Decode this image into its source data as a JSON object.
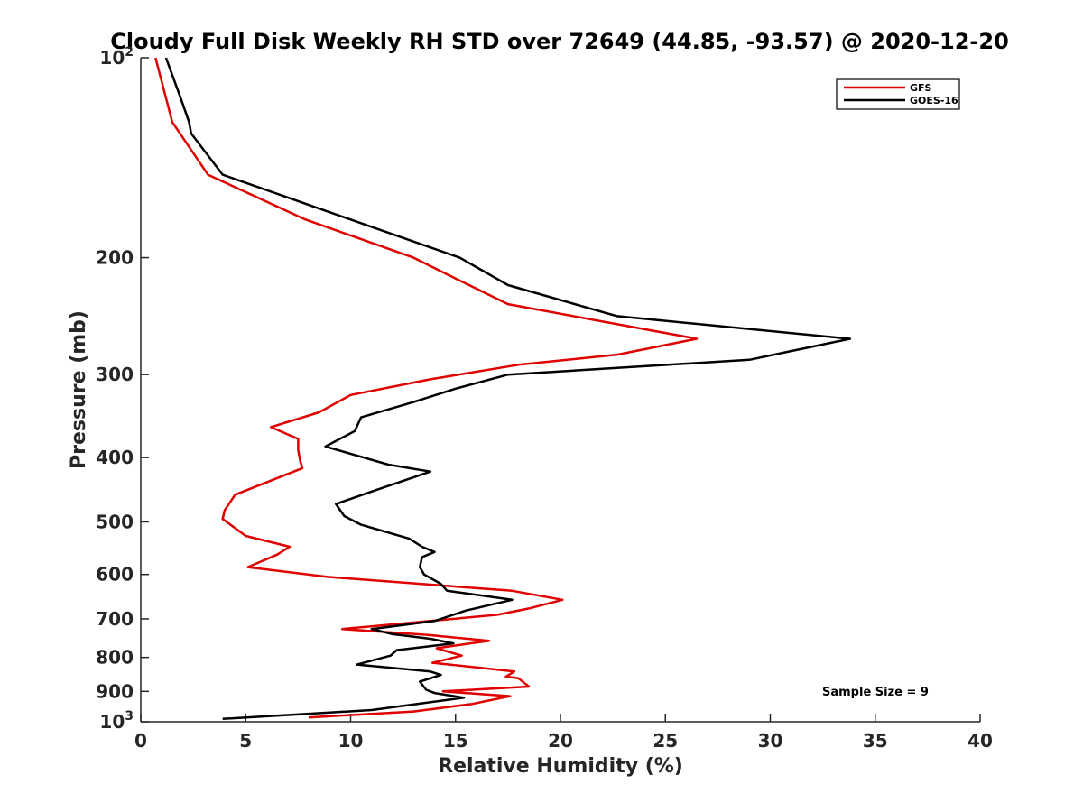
{
  "chart_data": {
    "type": "line",
    "title": "Cloudy Full Disk Weekly RH STD over 72649 (44.85, -93.57) @ 2020-12-20",
    "xlabel": "Relative Humidity (%)",
    "ylabel": "Pressure (mb)",
    "xlim": [
      0,
      40
    ],
    "ylim": [
      100,
      1000
    ],
    "y_scale": "log",
    "y_reversed": true,
    "x_ticks": [
      0,
      5,
      10,
      15,
      20,
      25,
      30,
      35,
      40
    ],
    "y_ticks": [
      {
        "value": 100,
        "label": "10",
        "sup": "2"
      },
      {
        "value": 200,
        "label": "200",
        "sup": ""
      },
      {
        "value": 300,
        "label": "300",
        "sup": ""
      },
      {
        "value": 400,
        "label": "400",
        "sup": ""
      },
      {
        "value": 500,
        "label": "500",
        "sup": ""
      },
      {
        "value": 600,
        "label": "600",
        "sup": ""
      },
      {
        "value": 700,
        "label": "700",
        "sup": ""
      },
      {
        "value": 800,
        "label": "800",
        "sup": ""
      },
      {
        "value": 900,
        "label": "900",
        "sup": ""
      },
      {
        "value": 1000,
        "label": "10",
        "sup": "3"
      }
    ],
    "grid": false,
    "legend_position": "top-right",
    "annotation": "Sample Size = 9",
    "series": [
      {
        "name": "GFS",
        "color": "#e00000",
        "points": [
          [
            0.7,
            100
          ],
          [
            1.5,
            125
          ],
          [
            3.2,
            150
          ],
          [
            7.8,
            175
          ],
          [
            13.0,
            200
          ],
          [
            15.0,
            215
          ],
          [
            17.5,
            235
          ],
          [
            26.5,
            265
          ],
          [
            22.7,
            280
          ],
          [
            18.0,
            290
          ],
          [
            13.8,
            305
          ],
          [
            10.0,
            322
          ],
          [
            8.5,
            342
          ],
          [
            6.2,
            360
          ],
          [
            7.5,
            375
          ],
          [
            7.5,
            390
          ],
          [
            7.6,
            405
          ],
          [
            7.7,
            415
          ],
          [
            4.5,
            455
          ],
          [
            4.0,
            480
          ],
          [
            3.9,
            495
          ],
          [
            5.0,
            525
          ],
          [
            7.1,
            545
          ],
          [
            6.5,
            560
          ],
          [
            5.1,
            585
          ],
          [
            8.9,
            605
          ],
          [
            17.7,
            635
          ],
          [
            20.1,
            655
          ],
          [
            18.5,
            675
          ],
          [
            17.0,
            690
          ],
          [
            13.8,
            705
          ],
          [
            9.6,
            725
          ],
          [
            13.7,
            740
          ],
          [
            16.6,
            755
          ],
          [
            14.1,
            775
          ],
          [
            15.3,
            795
          ],
          [
            13.9,
            815
          ],
          [
            17.8,
            840
          ],
          [
            17.4,
            855
          ],
          [
            18.0,
            860
          ],
          [
            18.5,
            885
          ],
          [
            14.4,
            900
          ],
          [
            17.6,
            915
          ],
          [
            15.8,
            940
          ],
          [
            13.0,
            965
          ],
          [
            8.0,
            985
          ]
        ]
      },
      {
        "name": "GOES-16",
        "color": "#000000",
        "points": [
          [
            1.2,
            100
          ],
          [
            1.9,
            115
          ],
          [
            2.3,
            125
          ],
          [
            2.4,
            130
          ],
          [
            3.9,
            150
          ],
          [
            8.8,
            170
          ],
          [
            15.2,
            200
          ],
          [
            17.5,
            220
          ],
          [
            22.7,
            245
          ],
          [
            33.8,
            265
          ],
          [
            29.0,
            285
          ],
          [
            17.5,
            300
          ],
          [
            15.0,
            315
          ],
          [
            13.0,
            330
          ],
          [
            10.5,
            348
          ],
          [
            10.2,
            365
          ],
          [
            8.8,
            385
          ],
          [
            11.8,
            410
          ],
          [
            13.8,
            420
          ],
          [
            11.0,
            450
          ],
          [
            9.3,
            470
          ],
          [
            9.7,
            490
          ],
          [
            10.5,
            505
          ],
          [
            12.8,
            530
          ],
          [
            13.4,
            545
          ],
          [
            14.0,
            555
          ],
          [
            13.4,
            565
          ],
          [
            13.3,
            585
          ],
          [
            13.5,
            600
          ],
          [
            14.3,
            620
          ],
          [
            14.6,
            635
          ],
          [
            17.7,
            655
          ],
          [
            15.5,
            680
          ],
          [
            14.0,
            705
          ],
          [
            11.0,
            725
          ],
          [
            12.0,
            738
          ],
          [
            13.8,
            750
          ],
          [
            14.9,
            762
          ],
          [
            12.2,
            780
          ],
          [
            11.9,
            795
          ],
          [
            10.3,
            820
          ],
          [
            13.8,
            840
          ],
          [
            14.3,
            850
          ],
          [
            13.3,
            870
          ],
          [
            13.6,
            895
          ],
          [
            14.0,
            905
          ],
          [
            15.4,
            920
          ],
          [
            11.0,
            960
          ],
          [
            3.9,
            990
          ]
        ]
      }
    ]
  }
}
